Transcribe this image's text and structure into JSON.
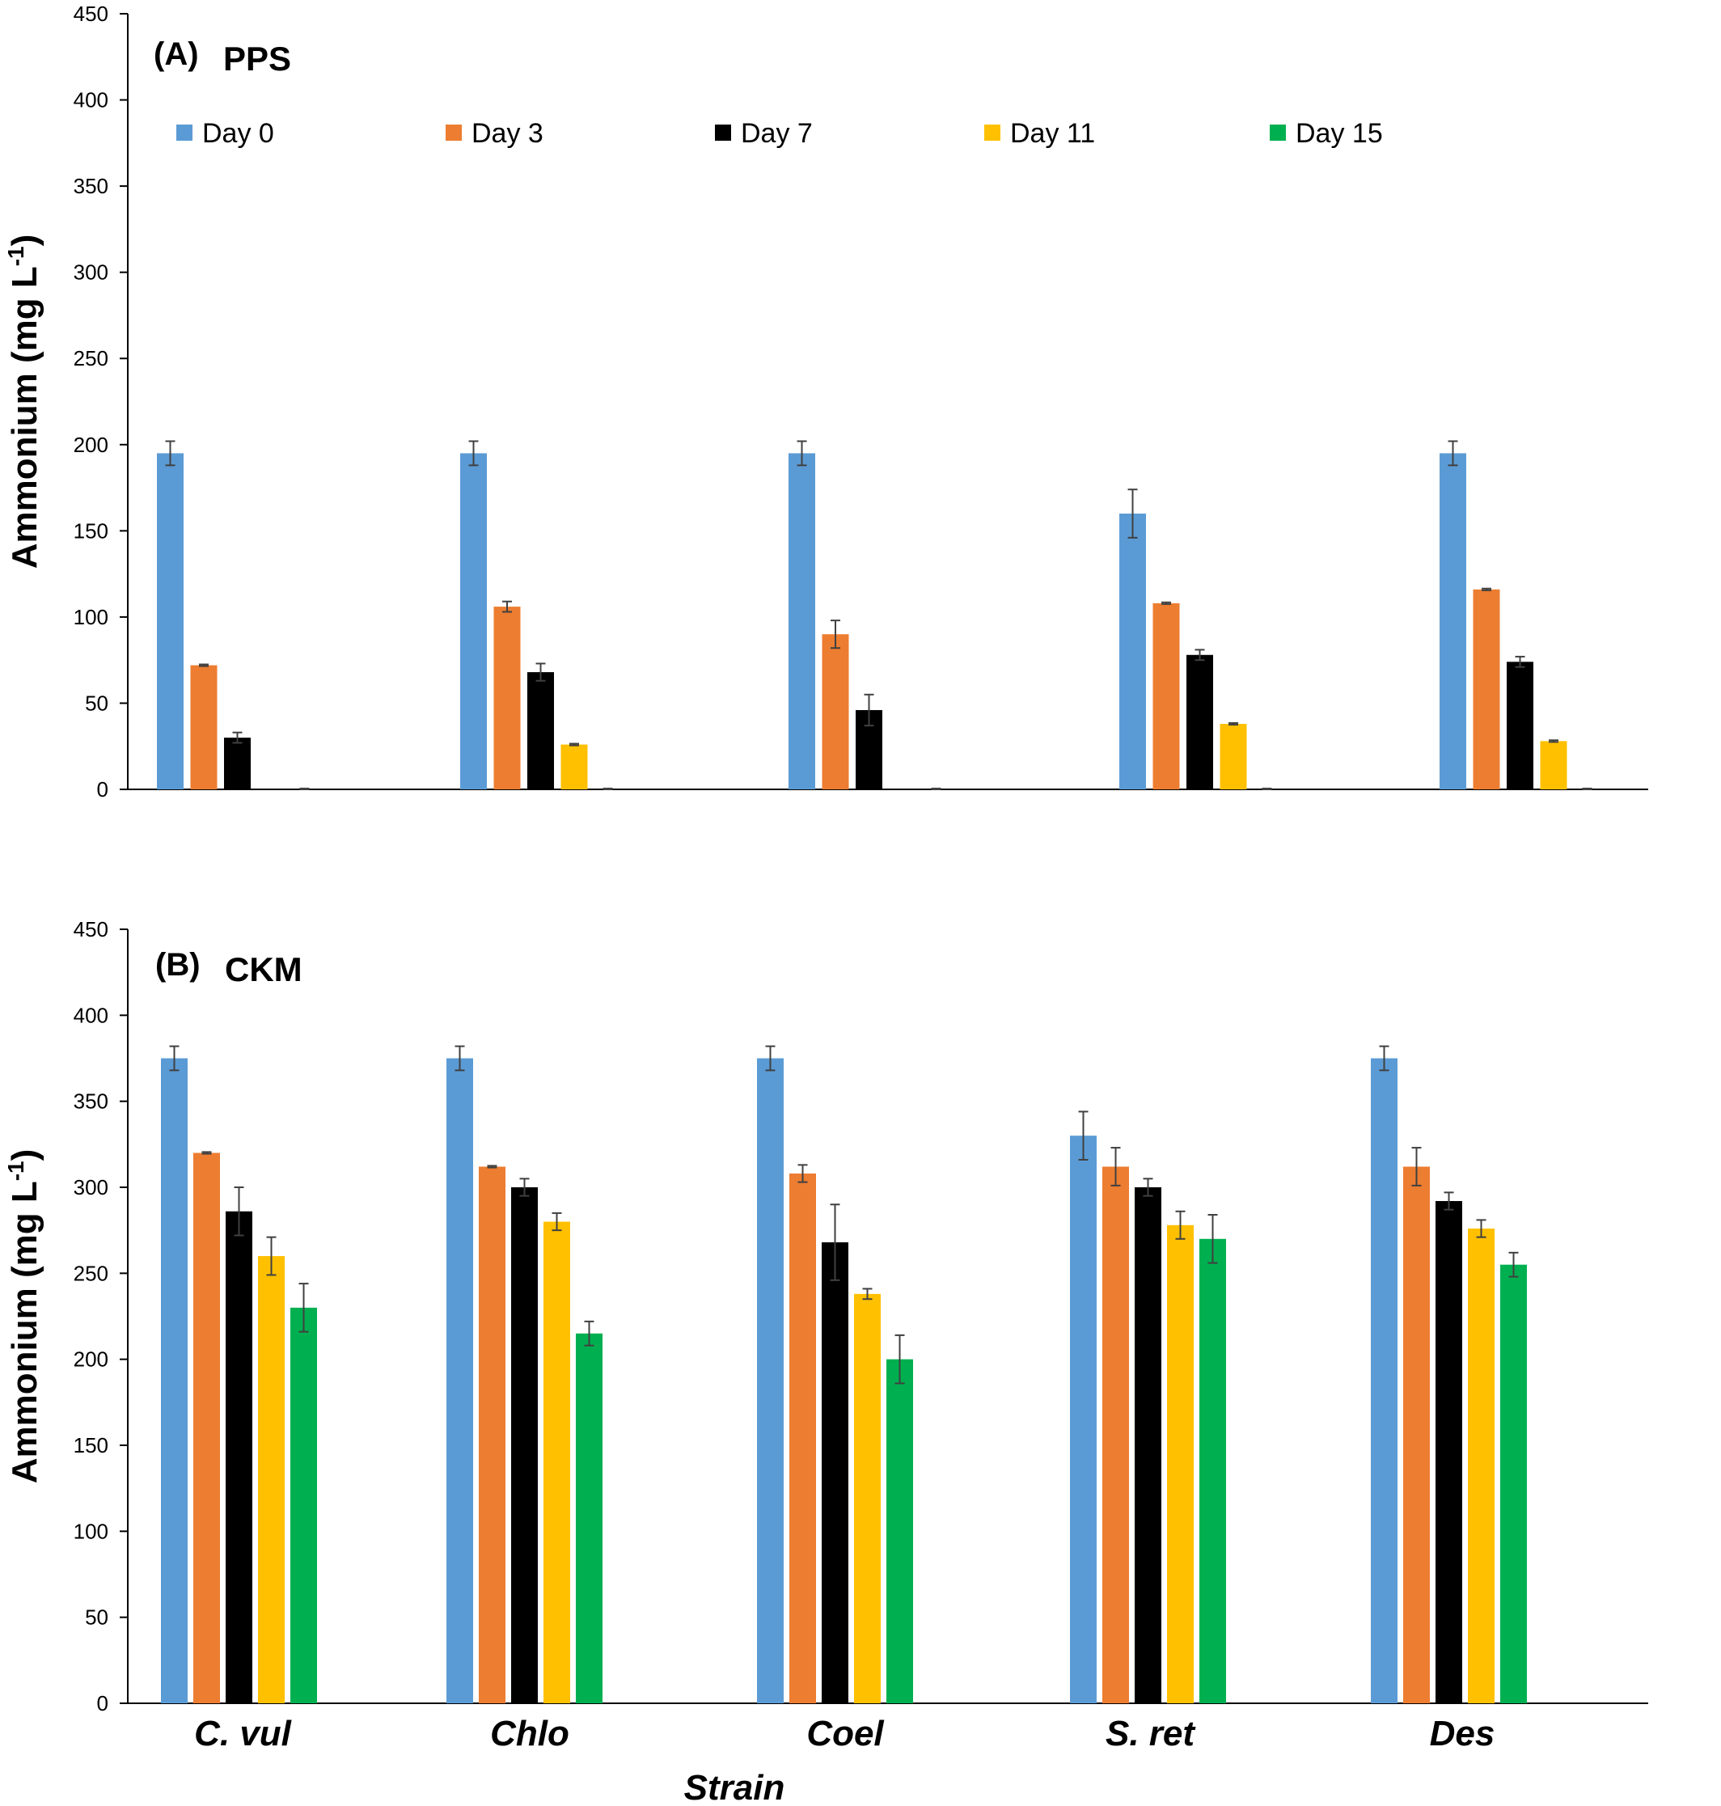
{
  "chart_data": [
    {
      "type": "bar",
      "panel_label": "(A)",
      "title": "PPS",
      "ylabel": "Ammonium (mg L",
      "ylabel_superscript": "-1",
      "ylabel_close": ")",
      "xlabel": "",
      "ylim": [
        0,
        450
      ],
      "yticks": [
        "0",
        "50",
        "100",
        "150",
        "200",
        "250",
        "300",
        "350",
        "400",
        "450"
      ],
      "categories": [
        "C. vul",
        "Chlo",
        "Coel",
        "S. ret",
        "Des"
      ],
      "show_category_labels": false,
      "grid": false,
      "legend_position": "top",
      "series": [
        {
          "name": "Day 0",
          "color": "#5B9BD5",
          "values": [
            195,
            195,
            195,
            160,
            195
          ],
          "errors": [
            7,
            7,
            7,
            14,
            7
          ]
        },
        {
          "name": "Day 3",
          "color": "#ED7D31",
          "values": [
            72,
            106,
            90,
            108,
            116
          ],
          "errors": [
            0.5,
            3,
            8,
            0.5,
            0.5
          ]
        },
        {
          "name": "Day 7",
          "color": "#000000",
          "values": [
            30,
            68,
            46,
            78,
            74
          ],
          "errors": [
            3,
            5,
            9,
            3,
            3
          ]
        },
        {
          "name": "Day 11",
          "color": "#FFC000",
          "values": [
            0,
            26,
            0,
            38,
            28
          ],
          "errors": [
            0,
            0.5,
            0,
            0.5,
            0.5
          ]
        },
        {
          "name": "Day 15",
          "color": "#00B050",
          "values": [
            0,
            0,
            0,
            0,
            0
          ],
          "errors": [
            0.5,
            0.5,
            0.5,
            0.5,
            0.5
          ]
        }
      ]
    },
    {
      "type": "bar",
      "panel_label": "(B)",
      "title": "CKM",
      "ylabel": "Ammonium (mg L",
      "ylabel_superscript": "-1",
      "ylabel_close": ")",
      "xlabel": "Strain",
      "ylim": [
        0,
        450
      ],
      "yticks": [
        "0",
        "50",
        "100",
        "150",
        "200",
        "250",
        "300",
        "350",
        "400",
        "450"
      ],
      "categories": [
        "C. vul",
        "Chlo",
        "Coel",
        "S. ret",
        "Des"
      ],
      "show_category_labels": true,
      "grid": false,
      "series": [
        {
          "name": "Day 0",
          "color": "#5B9BD5",
          "values": [
            375,
            375,
            375,
            330,
            375
          ],
          "errors": [
            7,
            7,
            7,
            14,
            7
          ]
        },
        {
          "name": "Day 3",
          "color": "#ED7D31",
          "values": [
            320,
            312,
            308,
            312,
            312
          ],
          "errors": [
            0.5,
            0.5,
            5,
            11,
            11
          ]
        },
        {
          "name": "Day 7",
          "color": "#000000",
          "values": [
            286,
            300,
            268,
            300,
            292
          ],
          "errors": [
            14,
            5,
            22,
            5,
            5
          ]
        },
        {
          "name": "Day 11",
          "color": "#FFC000",
          "values": [
            260,
            280,
            238,
            278,
            276
          ],
          "errors": [
            11,
            5,
            3,
            8,
            5
          ]
        },
        {
          "name": "Day 15",
          "color": "#00B050",
          "values": [
            230,
            215,
            200,
            270,
            255
          ],
          "errors": [
            14,
            7,
            14,
            14,
            7
          ]
        }
      ]
    }
  ]
}
